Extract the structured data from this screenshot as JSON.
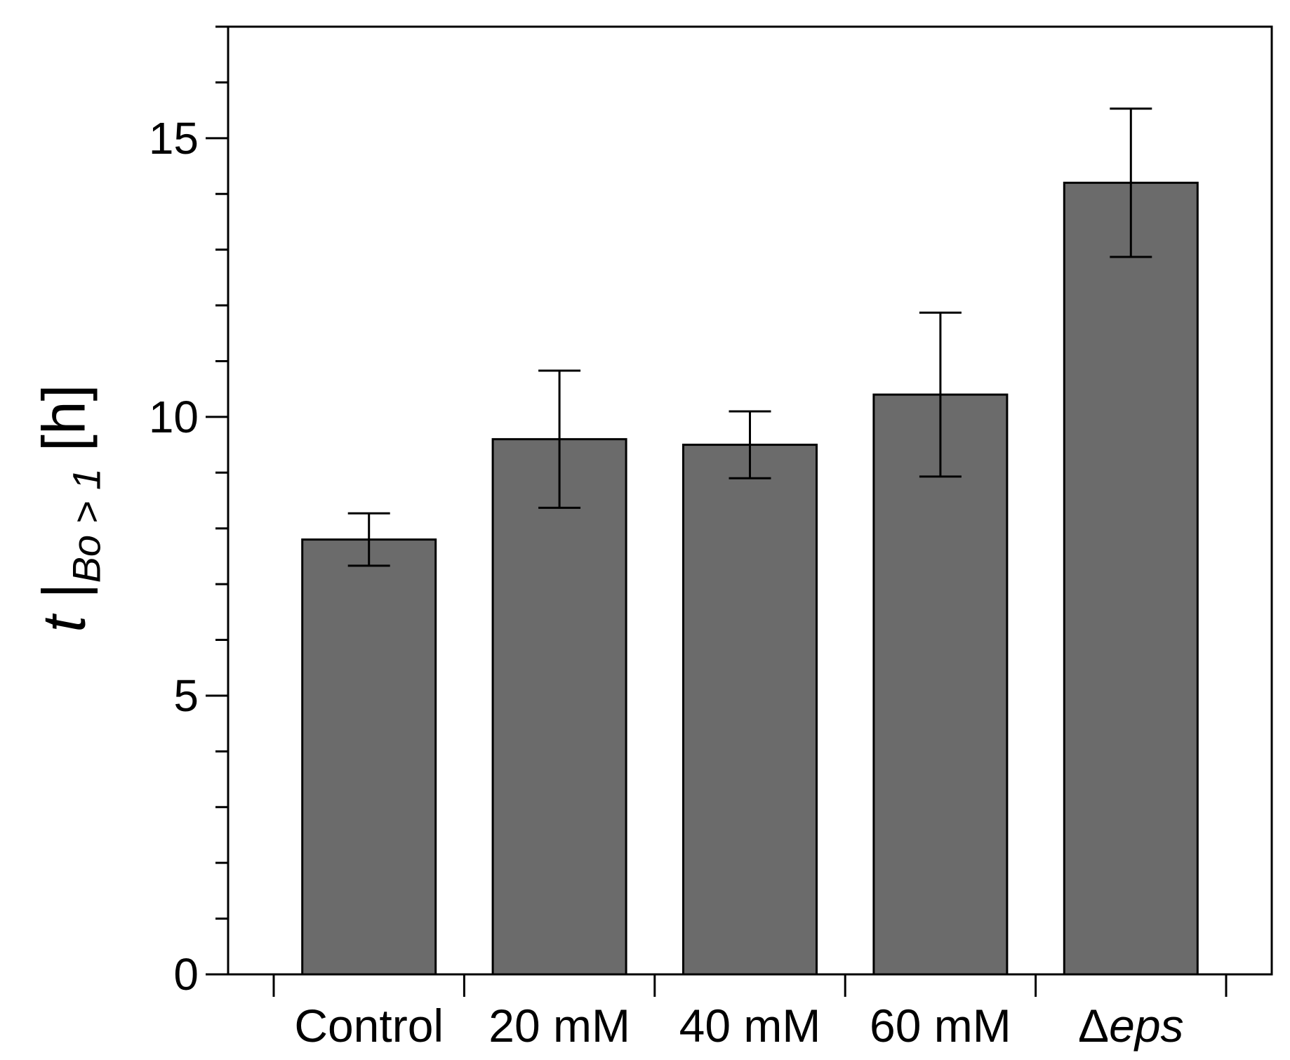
{
  "chart_data": {
    "type": "bar",
    "categories": [
      "Control",
      "20 mM",
      "40 mM",
      "60 mM",
      "Δeps"
    ],
    "category_display": [
      {
        "prefix": "Control",
        "italic": ""
      },
      {
        "prefix": "20 mM",
        "italic": ""
      },
      {
        "prefix": "40 mM",
        "italic": ""
      },
      {
        "prefix": "60 mM",
        "italic": ""
      },
      {
        "prefix": "Δ",
        "italic": "eps"
      }
    ],
    "values": [
      7.8,
      9.6,
      9.5,
      10.4,
      14.2
    ],
    "errors": [
      0.47,
      1.23,
      0.6,
      1.47,
      1.33
    ],
    "ylim": [
      0,
      17
    ],
    "yticks_major": [
      0,
      5,
      10,
      15
    ],
    "ytick_labels": [
      "0",
      "5",
      "10",
      "15"
    ],
    "yticks_minor_step": 1,
    "ylabel": {
      "main": "t",
      "bar": "|",
      "sub": "Bo > 1",
      "unit": "[h]"
    },
    "xlabel": "",
    "title": "",
    "bar_color": "#6b6b6b",
    "grid": false,
    "legend": "none"
  }
}
